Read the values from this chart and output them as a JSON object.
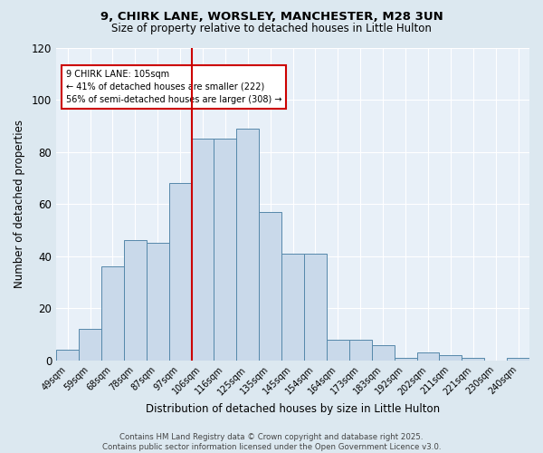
{
  "title_line1": "9, CHIRK LANE, WORSLEY, MANCHESTER, M28 3UN",
  "title_line2": "Size of property relative to detached houses in Little Hulton",
  "xlabel": "Distribution of detached houses by size in Little Hulton",
  "ylabel": "Number of detached properties",
  "bar_labels": [
    "49sqm",
    "59sqm",
    "68sqm",
    "78sqm",
    "87sqm",
    "97sqm",
    "106sqm",
    "116sqm",
    "125sqm",
    "135sqm",
    "145sqm",
    "154sqm",
    "164sqm",
    "173sqm",
    "183sqm",
    "192sqm",
    "202sqm",
    "211sqm",
    "221sqm",
    "230sqm",
    "240sqm"
  ],
  "bar_values": [
    4,
    12,
    36,
    46,
    45,
    68,
    85,
    85,
    89,
    57,
    41,
    41,
    8,
    8,
    6,
    1,
    3,
    2,
    1,
    0,
    1
  ],
  "bar_color": "#c9d9ea",
  "bar_edge_color": "#5588aa",
  "vline_color": "#cc0000",
  "ylim": [
    0,
    120
  ],
  "yticks": [
    0,
    20,
    40,
    60,
    80,
    100,
    120
  ],
  "annotation_text": "9 CHIRK LANE: 105sqm\n← 41% of detached houses are smaller (222)\n56% of semi-detached houses are larger (308) →",
  "annotation_box_color": "#ffffff",
  "annotation_box_edge": "#cc0000",
  "footer_text": "Contains HM Land Registry data © Crown copyright and database right 2025.\nContains public sector information licensed under the Open Government Licence v3.0.",
  "background_color": "#dce8f0",
  "plot_bg_color": "#e8f0f8"
}
